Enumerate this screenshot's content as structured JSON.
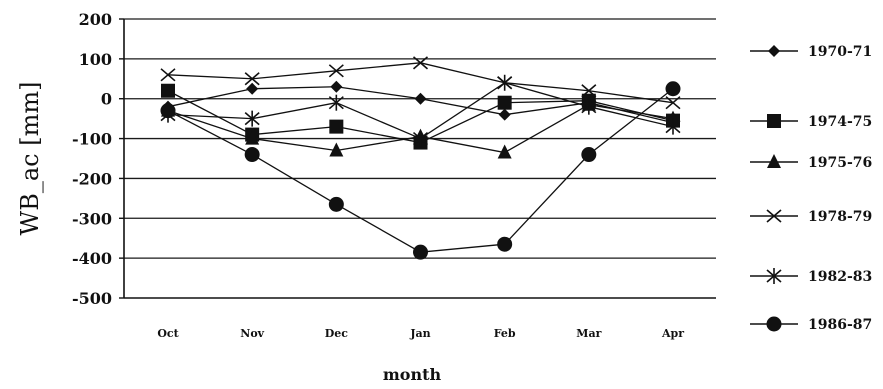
{
  "chart_data": {
    "type": "line",
    "xlabel": "month",
    "ylabel": "WB_ac [mm]",
    "categories": [
      "Oct",
      "Nov",
      "Dec",
      "Jan",
      "Feb",
      "Mar",
      "Apr"
    ],
    "ylim": [
      -500,
      200
    ],
    "yticks": [
      200,
      100,
      0,
      -100,
      -200,
      -300,
      -400,
      -500
    ],
    "ytick_labels": [
      "200",
      "100",
      "0",
      "-100",
      "-200",
      "-300",
      "-400",
      "-500"
    ],
    "grid": "horizontal",
    "legend_position": "right",
    "series": [
      {
        "name": "1970-71",
        "marker": "diamond",
        "values": [
          -20,
          25,
          30,
          0,
          -40,
          -10,
          -60
        ]
      },
      {
        "name": "1974-75",
        "marker": "square",
        "values": [
          20,
          -90,
          -70,
          -110,
          -10,
          -5,
          -55
        ]
      },
      {
        "name": "1975-76",
        "marker": "triangle",
        "values": [
          -30,
          -100,
          -130,
          -95,
          -135,
          -15,
          -50
        ]
      },
      {
        "name": "1978-79",
        "marker": "x",
        "values": [
          60,
          50,
          70,
          90,
          40,
          20,
          -10
        ]
      },
      {
        "name": "1982-83",
        "marker": "star",
        "values": [
          -40,
          -50,
          -10,
          -100,
          40,
          -20,
          -70
        ]
      },
      {
        "name": "1986-87",
        "marker": "circle",
        "values": [
          -30,
          -140,
          -265,
          -385,
          -365,
          -140,
          25
        ]
      }
    ]
  }
}
